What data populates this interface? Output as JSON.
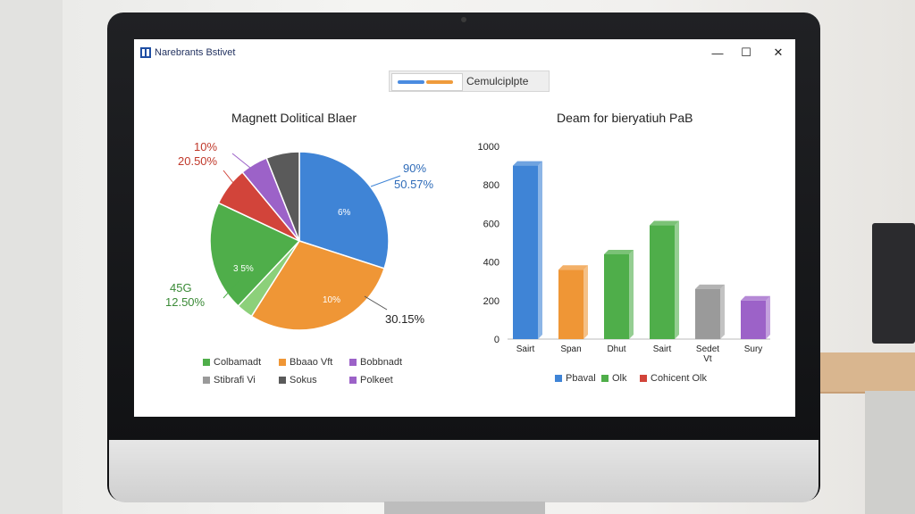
{
  "window": {
    "app_title": "Narebrants Bstivet",
    "app_icon_glyph": "OK",
    "minimize_glyph": "—",
    "maximize_glyph": "☐",
    "close_glyph": "✕"
  },
  "toolbar": {
    "label": "Cemulciplpte"
  },
  "chart_data": [
    {
      "type": "pie",
      "title": "Magnett Dolitical Blaer",
      "slices": [
        {
          "label": "90% 50.57%",
          "value": 30,
          "color": "#3f84d6"
        },
        {
          "label": "30.15%",
          "value": 29,
          "color": "#ef9636"
        },
        {
          "label": "",
          "value": 3,
          "color": "#8cd07a"
        },
        {
          "label": "45G 12.50%",
          "value": 20,
          "color": "#4fae4a"
        },
        {
          "label": "10% 20.50%",
          "value": 7,
          "color": "#d2443a"
        },
        {
          "label": "",
          "value": 5,
          "color": "#9c62c8"
        },
        {
          "label": "",
          "value": 6,
          "color": "#5a5a5a"
        }
      ],
      "slice_labels": {
        "top_left_1": "10%",
        "top_left_2": "20.50%",
        "top_right_1": "90%",
        "top_right_2": "50.57%",
        "bottom_left_1": "45G",
        "bottom_left_2": "12.50%",
        "bottom_right": "30.15%",
        "inner_blue": "6%",
        "inner_green": "3 5%",
        "inner_orange": "10%"
      },
      "legend": [
        {
          "label": "Colbamadt",
          "color": "#4fae4a"
        },
        {
          "label": "Bbaao Vft",
          "color": "#ef9636"
        },
        {
          "label": "Bobbnadt",
          "color": "#9c62c8"
        },
        {
          "label": "Stibrafi Vi",
          "color": "#9a9a9a"
        },
        {
          "label": "Sokus",
          "color": "#5a5a5a"
        },
        {
          "label": "Polkeet",
          "color": "#9c62c8"
        }
      ]
    },
    {
      "type": "bar",
      "title": "Deam for bieryatiuh PaB",
      "categories": [
        "Sairt",
        "Span",
        "Dhut",
        "Sairt",
        "Sedet Vt",
        "Sury"
      ],
      "values": [
        900,
        360,
        440,
        590,
        260,
        200
      ],
      "colors": [
        "#3f84d6",
        "#ef9636",
        "#4fae4a",
        "#4fae4a",
        "#9a9a9a",
        "#9c62c8"
      ],
      "ylim": [
        0,
        1000
      ],
      "yticks": [
        "0",
        "200",
        "400",
        "600",
        "800",
        "1000"
      ],
      "legend": [
        {
          "label": "Pbaval",
          "color": "#3f84d6"
        },
        {
          "label": "Olk",
          "color": "#4fae4a"
        },
        {
          "label": "Cohicent Olk",
          "color": "#d2443a"
        }
      ]
    }
  ]
}
